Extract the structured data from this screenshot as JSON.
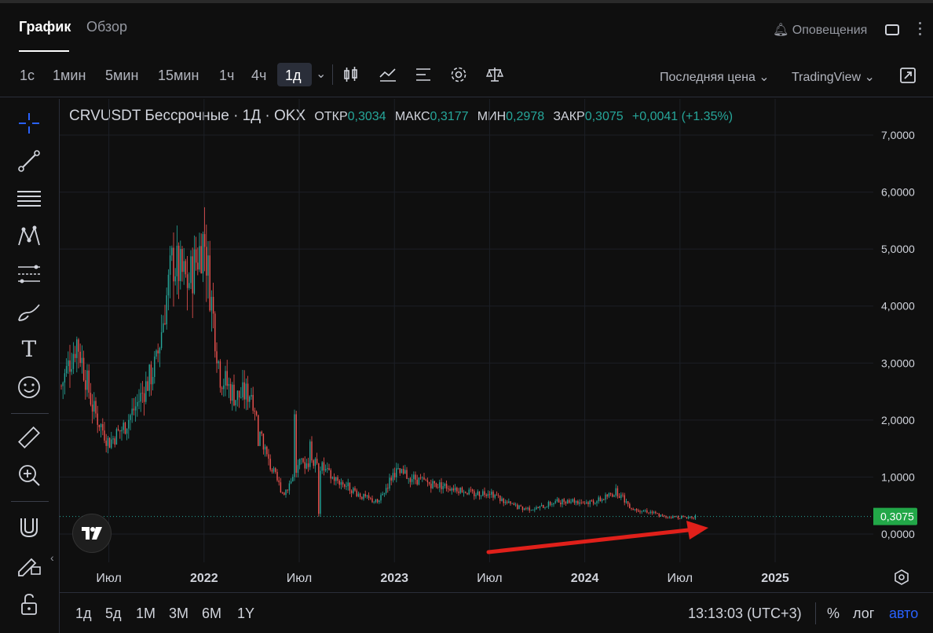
{
  "tabs": [
    {
      "label": "График",
      "active": true
    },
    {
      "label": "Обзор",
      "active": false
    }
  ],
  "alerts_label": "Оповещения",
  "timeframes": [
    "1с",
    "1мин",
    "5мин",
    "15мин",
    "1ч",
    "4ч",
    "1д"
  ],
  "active_timeframe": "1д",
  "toolbar_icons": [
    "candles-icon",
    "indicators-icon",
    "templates-icon",
    "settings-icon",
    "compare-scale-icon"
  ],
  "price_type": "Последняя цена",
  "source": "TradingView",
  "left_tools": [
    "crosshair-icon",
    "trendline-icon",
    "horizontal-lines-icon",
    "pattern-icon",
    "fib-icon",
    "brush-icon",
    "text-icon",
    "emoji-icon",
    "ruler-icon",
    "zoom-in-icon",
    "magnet-icon",
    "lock-drawing-icon",
    "unlock-icon"
  ],
  "legend": {
    "title": "CRVUSDT Бессрочные · 1Д · OKX",
    "open_label": "ОТКР",
    "open": "0,3034",
    "high_label": "МАКС",
    "high": "0,3177",
    "low_label": "МИН",
    "low": "0,2978",
    "close_label": "ЗАКР",
    "close": "0,3075",
    "change": "+0,0041 (+1.35%)"
  },
  "price_axis_labels": [
    "7,0000",
    "6,0000",
    "5,0000",
    "4,0000",
    "3,0000",
    "2,0000",
    "1,0000",
    "0,0000"
  ],
  "last_price": "0,3075",
  "time_axis_labels": [
    "Июл",
    "2022",
    "Июл",
    "2023",
    "Июл",
    "2024",
    "Июл",
    "2025"
  ],
  "ranges": [
    "1д",
    "5д",
    "1М",
    "3М",
    "6М",
    "1Y"
  ],
  "clock": "13:13:03 (UTC+3)",
  "percent_label": "%",
  "log_label": "лог",
  "auto_label": "авто",
  "colors": {
    "up": "#26a69a",
    "down": "#ef5350",
    "last_price_bg": "#22a748",
    "arrow": "#e0201a",
    "accent": "#2962ff"
  },
  "chart_data": {
    "type": "candlestick",
    "title": "CRVUSDT Бессрочные · 1Д · OKX",
    "ylim": [
      0,
      7
    ],
    "x_ticks": [
      "Июл",
      "2022",
      "Июл",
      "2023",
      "Июл",
      "2024",
      "Июл",
      "2025"
    ],
    "close_path": [
      {
        "x": "2021-04",
        "y": 2.6
      },
      {
        "x": "2021-05",
        "y": 3.4
      },
      {
        "x": "2021-06",
        "y": 2.2
      },
      {
        "x": "2021-07",
        "y": 1.6
      },
      {
        "x": "2021-08",
        "y": 1.9
      },
      {
        "x": "2021-09",
        "y": 2.4
      },
      {
        "x": "2021-10",
        "y": 3.0
      },
      {
        "x": "2021-11",
        "y": 4.8
      },
      {
        "x": "2021-12",
        "y": 4.4
      },
      {
        "x": "2022-01",
        "y": 5.2
      },
      {
        "x": "2022-02",
        "y": 2.8
      },
      {
        "x": "2022-03",
        "y": 2.4
      },
      {
        "x": "2022-04",
        "y": 2.5
      },
      {
        "x": "2022-05",
        "y": 1.3
      },
      {
        "x": "2022-06",
        "y": 0.7
      },
      {
        "x": "2022-07",
        "y": 1.2
      },
      {
        "x": "2022-08",
        "y": 1.3
      },
      {
        "x": "2022-09",
        "y": 1.0
      },
      {
        "x": "2022-10",
        "y": 0.85
      },
      {
        "x": "2022-11",
        "y": 0.65
      },
      {
        "x": "2022-12",
        "y": 0.55
      },
      {
        "x": "2023-01",
        "y": 1.1
      },
      {
        "x": "2023-02",
        "y": 1.0
      },
      {
        "x": "2023-03",
        "y": 0.9
      },
      {
        "x": "2023-04",
        "y": 0.85
      },
      {
        "x": "2023-05",
        "y": 0.8
      },
      {
        "x": "2023-06",
        "y": 0.7
      },
      {
        "x": "2023-07",
        "y": 0.75
      },
      {
        "x": "2023-08",
        "y": 0.55
      },
      {
        "x": "2023-09",
        "y": 0.45
      },
      {
        "x": "2023-10",
        "y": 0.45
      },
      {
        "x": "2023-11",
        "y": 0.55
      },
      {
        "x": "2023-12",
        "y": 0.6
      },
      {
        "x": "2024-01",
        "y": 0.55
      },
      {
        "x": "2024-02",
        "y": 0.6
      },
      {
        "x": "2024-03",
        "y": 0.75
      },
      {
        "x": "2024-04",
        "y": 0.45
      },
      {
        "x": "2024-05",
        "y": 0.4
      },
      {
        "x": "2024-06",
        "y": 0.3
      },
      {
        "x": "2024-07",
        "y": 0.3
      },
      {
        "x": "2024-08",
        "y": 0.3
      }
    ],
    "last_close": 0.3075
  }
}
